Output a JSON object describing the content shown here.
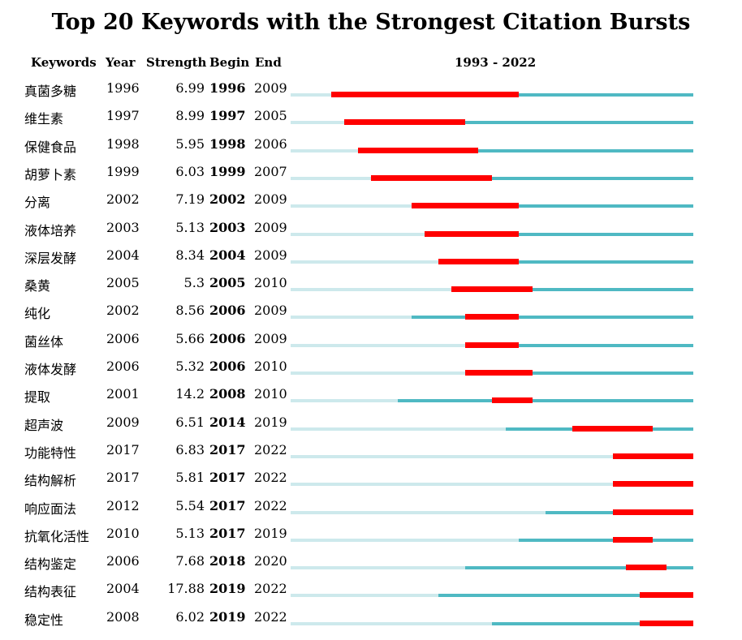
{
  "title": "Top 20 Keywords with the Strongest Citation Bursts",
  "headers": {
    "keywords": "Keywords",
    "year": "Year",
    "strength": "Strength",
    "begin": "Begin",
    "end": "End",
    "range": "1993 - 2022"
  },
  "colors": {
    "pre_publication": "#cde9ec",
    "active": "#4fb9c3",
    "burst": "#ff0000"
  },
  "chart_data": {
    "type": "table",
    "title": "Top 20 Keywords with the Strongest Citation Bursts",
    "range_start": 1993,
    "range_end": 2022,
    "columns": [
      "Keywords",
      "Year",
      "Strength",
      "Begin",
      "End"
    ],
    "rows": [
      {
        "keyword": "真菌多糖",
        "year": 1996,
        "strength": "6.99",
        "begin": 1996,
        "end": 2009
      },
      {
        "keyword": "维生素",
        "year": 1997,
        "strength": "8.99",
        "begin": 1997,
        "end": 2005
      },
      {
        "keyword": "保健食品",
        "year": 1998,
        "strength": "5.95",
        "begin": 1998,
        "end": 2006
      },
      {
        "keyword": "胡萝卜素",
        "year": 1999,
        "strength": "6.03",
        "begin": 1999,
        "end": 2007
      },
      {
        "keyword": "分离",
        "year": 2002,
        "strength": "7.19",
        "begin": 2002,
        "end": 2009
      },
      {
        "keyword": "液体培养",
        "year": 2003,
        "strength": "5.13",
        "begin": 2003,
        "end": 2009
      },
      {
        "keyword": "深层发酵",
        "year": 2004,
        "strength": "8.34",
        "begin": 2004,
        "end": 2009
      },
      {
        "keyword": "桑黄",
        "year": 2005,
        "strength": "5.3",
        "begin": 2005,
        "end": 2010
      },
      {
        "keyword": "纯化",
        "year": 2002,
        "strength": "8.56",
        "begin": 2006,
        "end": 2009
      },
      {
        "keyword": "菌丝体",
        "year": 2006,
        "strength": "5.66",
        "begin": 2006,
        "end": 2009
      },
      {
        "keyword": "液体发酵",
        "year": 2006,
        "strength": "5.32",
        "begin": 2006,
        "end": 2010
      },
      {
        "keyword": "提取",
        "year": 2001,
        "strength": "14.2",
        "begin": 2008,
        "end": 2010
      },
      {
        "keyword": "超声波",
        "year": 2009,
        "strength": "6.51",
        "begin": 2014,
        "end": 2019
      },
      {
        "keyword": "功能特性",
        "year": 2017,
        "strength": "6.83",
        "begin": 2017,
        "end": 2022
      },
      {
        "keyword": "结构解析",
        "year": 2017,
        "strength": "5.81",
        "begin": 2017,
        "end": 2022
      },
      {
        "keyword": "响应面法",
        "year": 2012,
        "strength": "5.54",
        "begin": 2017,
        "end": 2022
      },
      {
        "keyword": "抗氧化活性",
        "year": 2010,
        "strength": "5.13",
        "begin": 2017,
        "end": 2019
      },
      {
        "keyword": "结构鉴定",
        "year": 2006,
        "strength": "7.68",
        "begin": 2018,
        "end": 2020
      },
      {
        "keyword": "结构表征",
        "year": 2004,
        "strength": "17.88",
        "begin": 2019,
        "end": 2022
      },
      {
        "keyword": "稳定性",
        "year": 2008,
        "strength": "6.02",
        "begin": 2019,
        "end": 2022
      }
    ]
  }
}
